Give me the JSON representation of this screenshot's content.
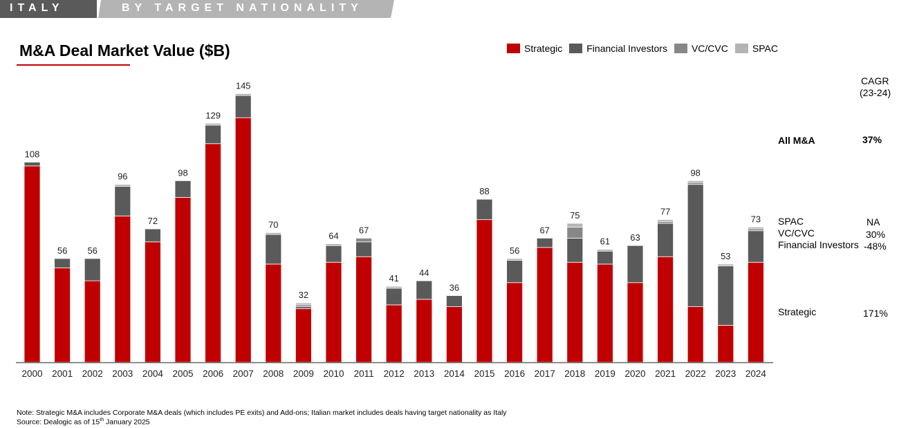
{
  "banner": {
    "section": "ITALY",
    "subtitle": "BY TARGET NATIONALITY"
  },
  "chart_data": {
    "type": "bar",
    "stacked": true,
    "title": "M&A Deal Market Value ($B)",
    "xlabel": "",
    "ylabel": "",
    "ylim": [
      0,
      150
    ],
    "grid": false,
    "legend_position": "top-right",
    "categories": [
      "2000",
      "2001",
      "2002",
      "2003",
      "2004",
      "2005",
      "2006",
      "2007",
      "2008",
      "2009",
      "2010",
      "2011",
      "2012",
      "2013",
      "2014",
      "2015",
      "2016",
      "2017",
      "2018",
      "2019",
      "2020",
      "2021",
      "2022",
      "2023",
      "2024"
    ],
    "totals": [
      108,
      56,
      56,
      96,
      72,
      98,
      129,
      145,
      70,
      32,
      64,
      67,
      41,
      44,
      36,
      88,
      56,
      67,
      75,
      61,
      63,
      77,
      98,
      53,
      73
    ],
    "series": [
      {
        "name": "Strategic",
        "color": "#c00000",
        "values": [
          106,
          51,
          44,
          79,
          65,
          89,
          118,
          132,
          53,
          29,
          54,
          57,
          31,
          34,
          30,
          77,
          43,
          62,
          54,
          53,
          43,
          57,
          30,
          20,
          54
        ]
      },
      {
        "name": "Financial Investors",
        "color": "#5a5a5a",
        "values": [
          2,
          5,
          12,
          16,
          7,
          9,
          10,
          12,
          16,
          1,
          9,
          8,
          9,
          10,
          6,
          11,
          12,
          5,
          13,
          7,
          20,
          18,
          66,
          32,
          17
        ]
      },
      {
        "name": "VC/CVC",
        "color": "#878787",
        "values": [
          0,
          0,
          0,
          0,
          0,
          0,
          0,
          0,
          0,
          1,
          0,
          2,
          0,
          0,
          0,
          0,
          0,
          0,
          6,
          0,
          0,
          1,
          1,
          0,
          1
        ]
      },
      {
        "name": "SPAC",
        "color": "#b4b4b4",
        "values": [
          0,
          0,
          0,
          1,
          0,
          0,
          1,
          1,
          1,
          1,
          1,
          0,
          1,
          0,
          0,
          0,
          1,
          0,
          2,
          1,
          0,
          1,
          1,
          1,
          1
        ]
      }
    ]
  },
  "cagr": {
    "header": "CAGR",
    "period": "(23-24)",
    "rows": [
      {
        "label": "All M&A",
        "value": "37%",
        "bold": true
      },
      {
        "label": "SPAC",
        "value": "NA"
      },
      {
        "label": "VC/CVC",
        "value": "30%"
      },
      {
        "label": "Financial Investors",
        "value": "-48%"
      },
      {
        "label": "Strategic",
        "value": "171%"
      }
    ]
  },
  "footer": {
    "note": "Note: Strategic M&A includes Corporate M&A deals (which includes PE exits) and Add-ons; Italian market includes deals having target nationality as Italy",
    "source_prefix": "Source: Dealogic as of 15",
    "source_sup": "th",
    "source_suffix": " January 2025"
  }
}
